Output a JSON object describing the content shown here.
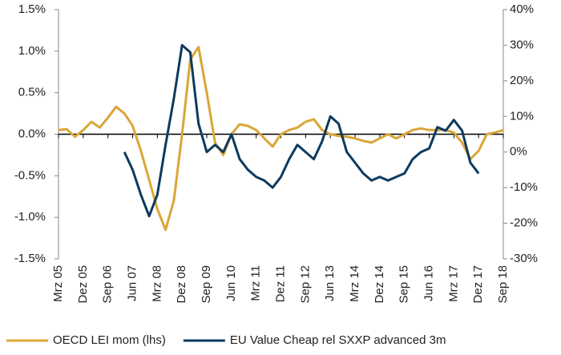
{
  "chart_data": {
    "type": "line",
    "categories": [
      "Mrz 05",
      null,
      null,
      "Dez 05",
      null,
      null,
      "Sep 06",
      null,
      null,
      "Jun 07",
      null,
      null,
      "Mrz 08",
      null,
      null,
      "Dez 08",
      null,
      null,
      "Sep 09",
      null,
      null,
      "Jun 10",
      null,
      null,
      "Mrz 11",
      null,
      null,
      "Dez 11",
      null,
      null,
      "Sep 12",
      null,
      null,
      "Jun 13",
      null,
      null,
      "Mrz 14",
      null,
      null,
      "Dez 14",
      null,
      null,
      "Sep 15",
      null,
      null,
      "Jun 16",
      null,
      null,
      "Mrz 17",
      null,
      null,
      "Dez 17",
      null,
      null,
      "Sep 18"
    ],
    "series": [
      {
        "name": "OECD LEI mom (lhs)",
        "color": "#d9a637",
        "values": [
          0.05,
          0.06,
          -0.03,
          0.05,
          0.15,
          0.08,
          0.2,
          0.33,
          0.25,
          0.1,
          -0.2,
          -0.55,
          -0.9,
          -1.15,
          -0.8,
          0.0,
          0.9,
          1.05,
          0.5,
          -0.1,
          -0.25,
          0.0,
          0.12,
          0.1,
          0.05,
          -0.05,
          -0.15,
          0.0,
          0.05,
          0.08,
          0.15,
          0.18,
          0.05,
          0.0,
          -0.02,
          -0.03,
          -0.05,
          -0.08,
          -0.1,
          -0.05,
          0.0,
          -0.05,
          0.0,
          0.05,
          0.07,
          0.05,
          0.05,
          0.05,
          0.02,
          -0.1,
          -0.3,
          -0.2,
          0.0,
          0.02,
          0.05
        ]
      },
      {
        "name": "EU Value Cheap rel SXXP advanced 3m",
        "color": "#0e3a5e",
        "axis": "y2",
        "values": [
          null,
          null,
          null,
          null,
          null,
          null,
          null,
          null,
          0,
          -5,
          -12,
          -18,
          -12,
          2,
          15,
          30,
          28,
          8,
          0,
          2,
          0,
          5,
          -2,
          -5,
          -7,
          -8,
          -10,
          -7,
          -2,
          2,
          0,
          -2,
          3,
          10,
          8,
          0,
          -3,
          -6,
          -8,
          -7,
          -8,
          -7,
          -6,
          -2,
          0,
          1,
          7,
          6,
          9,
          6,
          -3,
          -6,
          null,
          null,
          null
        ]
      }
    ],
    "ylim": [
      -1.5,
      1.5
    ],
    "yticks": [
      {
        "value": 1.5,
        "label": "1.5%"
      },
      {
        "value": 1.0,
        "label": "1.0%"
      },
      {
        "value": 0.5,
        "label": "0.5%"
      },
      {
        "value": 0.0,
        "label": "0.0%"
      },
      {
        "value": -0.5,
        "label": "-0.5%"
      },
      {
        "value": -1.0,
        "label": "-1.0%"
      },
      {
        "value": -1.5,
        "label": "-1.5%"
      }
    ],
    "y2lim": [
      -30,
      40
    ],
    "y2ticks": [
      {
        "value": 40,
        "label": "40%"
      },
      {
        "value": 30,
        "label": "30%"
      },
      {
        "value": 20,
        "label": "20%"
      },
      {
        "value": 10,
        "label": "10%"
      },
      {
        "value": 0,
        "label": "0%"
      },
      {
        "value": -10,
        "label": "-10%"
      },
      {
        "value": -20,
        "label": "-20%"
      },
      {
        "value": -30,
        "label": "-30%"
      }
    ]
  }
}
